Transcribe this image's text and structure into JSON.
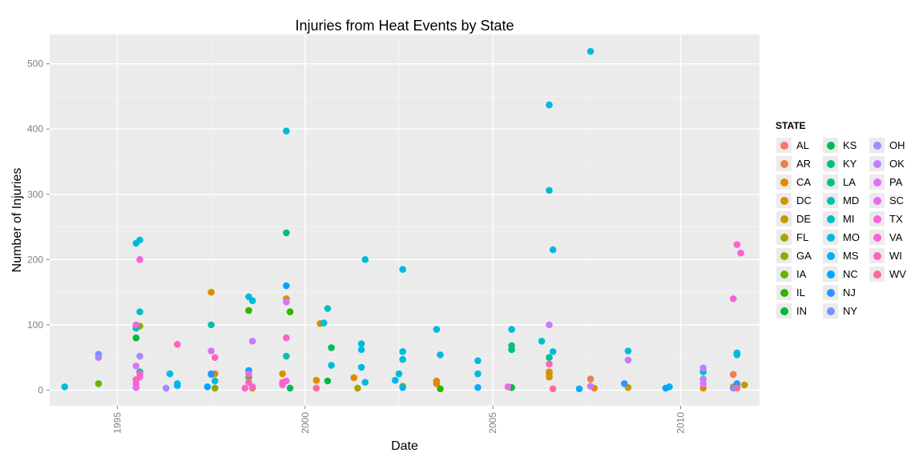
{
  "chart_data": {
    "type": "scatter",
    "title": "Injuries from Heat Events by State",
    "xlabel": "Date",
    "ylabel": "Number of Injuries",
    "x_ticks": [
      "1995",
      "2000",
      "2005",
      "2010"
    ],
    "y_ticks": [
      "0",
      "100",
      "200",
      "300",
      "400",
      "500"
    ],
    "xlim": [
      1993.2,
      2012.1
    ],
    "ylim": [
      -24,
      545
    ],
    "grid": true,
    "legend_title": "STATE",
    "legend_position": "right",
    "series": [
      {
        "name": "AL",
        "color": "#F8766D",
        "points": []
      },
      {
        "name": "AR",
        "color": "#EF7F49",
        "points": [
          [
            2007.6,
            17
          ],
          [
            2011.4,
            24
          ]
        ]
      },
      {
        "name": "CA",
        "color": "#E38900",
        "points": [
          [
            2000.3,
            15
          ],
          [
            2001.3,
            19
          ],
          [
            2003.5,
            10
          ],
          [
            2003.5,
            14
          ],
          [
            2006.5,
            28
          ],
          [
            2010.6,
            3
          ],
          [
            2007.7,
            3
          ]
        ]
      },
      {
        "name": "DC",
        "color": "#D39200",
        "points": [
          [
            1997.5,
            150
          ],
          [
            1999.5,
            140
          ],
          [
            1999.4,
            25
          ],
          [
            2000.4,
            102
          ],
          [
            1997.6,
            25
          ],
          [
            1998.6,
            3
          ],
          [
            2006.5,
            25
          ],
          [
            2006.5,
            20
          ]
        ]
      },
      {
        "name": "DE",
        "color": "#C09B00",
        "points": [
          [
            2008.6,
            4
          ],
          [
            2011.7,
            8
          ]
        ]
      },
      {
        "name": "FL",
        "color": "#A9A400",
        "points": [
          [
            2001.4,
            3
          ],
          [
            2011.4,
            5
          ]
        ]
      },
      {
        "name": "GA",
        "color": "#8FAA00",
        "points": [
          [
            1995.6,
            98
          ],
          [
            2002.6,
            6
          ],
          [
            1997.6,
            3
          ]
        ]
      },
      {
        "name": "IA",
        "color": "#6BB100",
        "points": [
          [
            1994.5,
            10
          ],
          [
            1995.5,
            95
          ],
          [
            1998.5,
            20
          ]
        ]
      },
      {
        "name": "IL",
        "color": "#31B600",
        "points": [
          [
            1998.5,
            122
          ],
          [
            1999.6,
            120
          ],
          [
            2003.6,
            2
          ],
          [
            2011.5,
            8
          ]
        ]
      },
      {
        "name": "IN",
        "color": "#00BA38",
        "points": [
          [
            1995.5,
            80
          ],
          [
            2000.6,
            14
          ],
          [
            2005.5,
            4
          ]
        ]
      },
      {
        "name": "KS",
        "color": "#00BC56",
        "points": [
          [
            2000.7,
            65
          ],
          [
            1999.6,
            3
          ]
        ]
      },
      {
        "name": "KY",
        "color": "#00BF7D",
        "points": [
          [
            1999.5,
            241
          ],
          [
            2005.5,
            62
          ]
        ]
      },
      {
        "name": "LA",
        "color": "#00C08B",
        "points": [
          [
            2005.5,
            68
          ],
          [
            2006.5,
            50
          ]
        ]
      },
      {
        "name": "MD",
        "color": "#00C0AF",
        "points": [
          [
            1997.5,
            100
          ],
          [
            1995.5,
            95
          ],
          [
            1999.5,
            52
          ],
          [
            1995.6,
            28
          ]
        ]
      },
      {
        "name": "MI",
        "color": "#00BFC4",
        "points": [
          [
            1995.6,
            120
          ],
          [
            2006.3,
            75
          ],
          [
            2010.6,
            28
          ],
          [
            2000.6,
            125
          ]
        ]
      },
      {
        "name": "MO",
        "color": "#00BADE",
        "points": [
          [
            1999.5,
            397
          ],
          [
            2006.5,
            437
          ],
          [
            2006.5,
            306
          ],
          [
            2006.6,
            215
          ],
          [
            2007.6,
            519
          ],
          [
            1995.5,
            225
          ],
          [
            1995.6,
            230
          ],
          [
            2001.6,
            200
          ],
          [
            2002.6,
            185
          ],
          [
            1998.5,
            143
          ],
          [
            1998.6,
            137
          ],
          [
            2003.5,
            93
          ],
          [
            2005.5,
            93
          ],
          [
            2001.5,
            71
          ],
          [
            2001.5,
            62
          ],
          [
            2000.5,
            103
          ],
          [
            2000.7,
            38
          ],
          [
            2002.6,
            59
          ],
          [
            2002.6,
            47
          ],
          [
            2003.6,
            54
          ],
          [
            2004.6,
            45
          ],
          [
            2006.6,
            59
          ],
          [
            2008.6,
            60
          ],
          [
            2011.5,
            57
          ],
          [
            2011.5,
            54
          ],
          [
            1996.4,
            25
          ],
          [
            1996.6,
            10
          ],
          [
            1997.6,
            14
          ],
          [
            2001.5,
            35
          ],
          [
            2001.6,
            12
          ],
          [
            2002.5,
            25
          ],
          [
            2004.6,
            25
          ],
          [
            1993.6,
            5
          ]
        ]
      },
      {
        "name": "MS",
        "color": "#00B2F3",
        "points": [
          [
            2002.4,
            15
          ],
          [
            2002.6,
            4
          ],
          [
            2004.6,
            4
          ],
          [
            2007.3,
            2
          ],
          [
            1996.6,
            7
          ],
          [
            2009.7,
            5
          ]
        ]
      },
      {
        "name": "NC",
        "color": "#00A5FF",
        "points": [
          [
            1999.5,
            160
          ],
          [
            1998.5,
            30
          ],
          [
            1997.5,
            24
          ],
          [
            1997.4,
            5
          ],
          [
            2009.6,
            3
          ]
        ]
      },
      {
        "name": "NJ",
        "color": "#2C94FF",
        "points": [
          [
            1997.5,
            25
          ],
          [
            2008.5,
            10
          ],
          [
            2011.5,
            10
          ]
        ]
      },
      {
        "name": "NY",
        "color": "#7D91FF",
        "points": [
          [
            1994.5,
            55
          ],
          [
            2011.4,
            3
          ]
        ]
      },
      {
        "name": "OH",
        "color": "#A58AFF",
        "points": [
          [
            1994.5,
            50
          ],
          [
            1995.6,
            52
          ],
          [
            2010.6,
            17
          ],
          [
            1996.3,
            3
          ]
        ]
      },
      {
        "name": "OK",
        "color": "#C77CFF",
        "points": [
          [
            1998.6,
            75
          ],
          [
            2006.5,
            100
          ],
          [
            2008.6,
            46
          ],
          [
            2010.6,
            34
          ],
          [
            2007.6,
            6
          ]
        ]
      },
      {
        "name": "PA",
        "color": "#DC71FA",
        "points": [
          [
            1997.5,
            60
          ],
          [
            1999.5,
            135
          ],
          [
            1995.5,
            37
          ],
          [
            1995.6,
            20
          ],
          [
            2010.6,
            10
          ]
        ]
      },
      {
        "name": "SC",
        "color": "#EC69EF",
        "points": [
          [
            1995.5,
            10
          ],
          [
            1998.5,
            25
          ],
          [
            1999.4,
            8
          ],
          [
            2005.4,
            5
          ]
        ]
      },
      {
        "name": "TX",
        "color": "#F763E0",
        "points": [
          [
            1995.6,
            200
          ],
          [
            2011.4,
            140
          ],
          [
            1995.5,
            100
          ],
          [
            1999.5,
            14
          ],
          [
            1995.5,
            4
          ]
        ]
      },
      {
        "name": "VA",
        "color": "#FD61D1",
        "points": [
          [
            2011.5,
            223
          ],
          [
            2011.6,
            210
          ],
          [
            1999.5,
            80
          ],
          [
            1998.6,
            5
          ],
          [
            1998.4,
            3
          ]
        ]
      },
      {
        "name": "WI",
        "color": "#FF62BC",
        "points": [
          [
            1996.6,
            70
          ],
          [
            1997.6,
            50
          ],
          [
            1995.6,
            25
          ],
          [
            1998.5,
            12
          ],
          [
            1999.4,
            12
          ],
          [
            2006.5,
            40
          ],
          [
            1995.5,
            16
          ]
        ]
      },
      {
        "name": "WV",
        "color": "#FF6C91",
        "points": [
          [
            2011.5,
            3
          ],
          [
            2006.6,
            2
          ],
          [
            2000.3,
            3
          ]
        ]
      }
    ]
  },
  "legend_extra": {
    "name": "WV",
    "color": "#FF6A98"
  }
}
